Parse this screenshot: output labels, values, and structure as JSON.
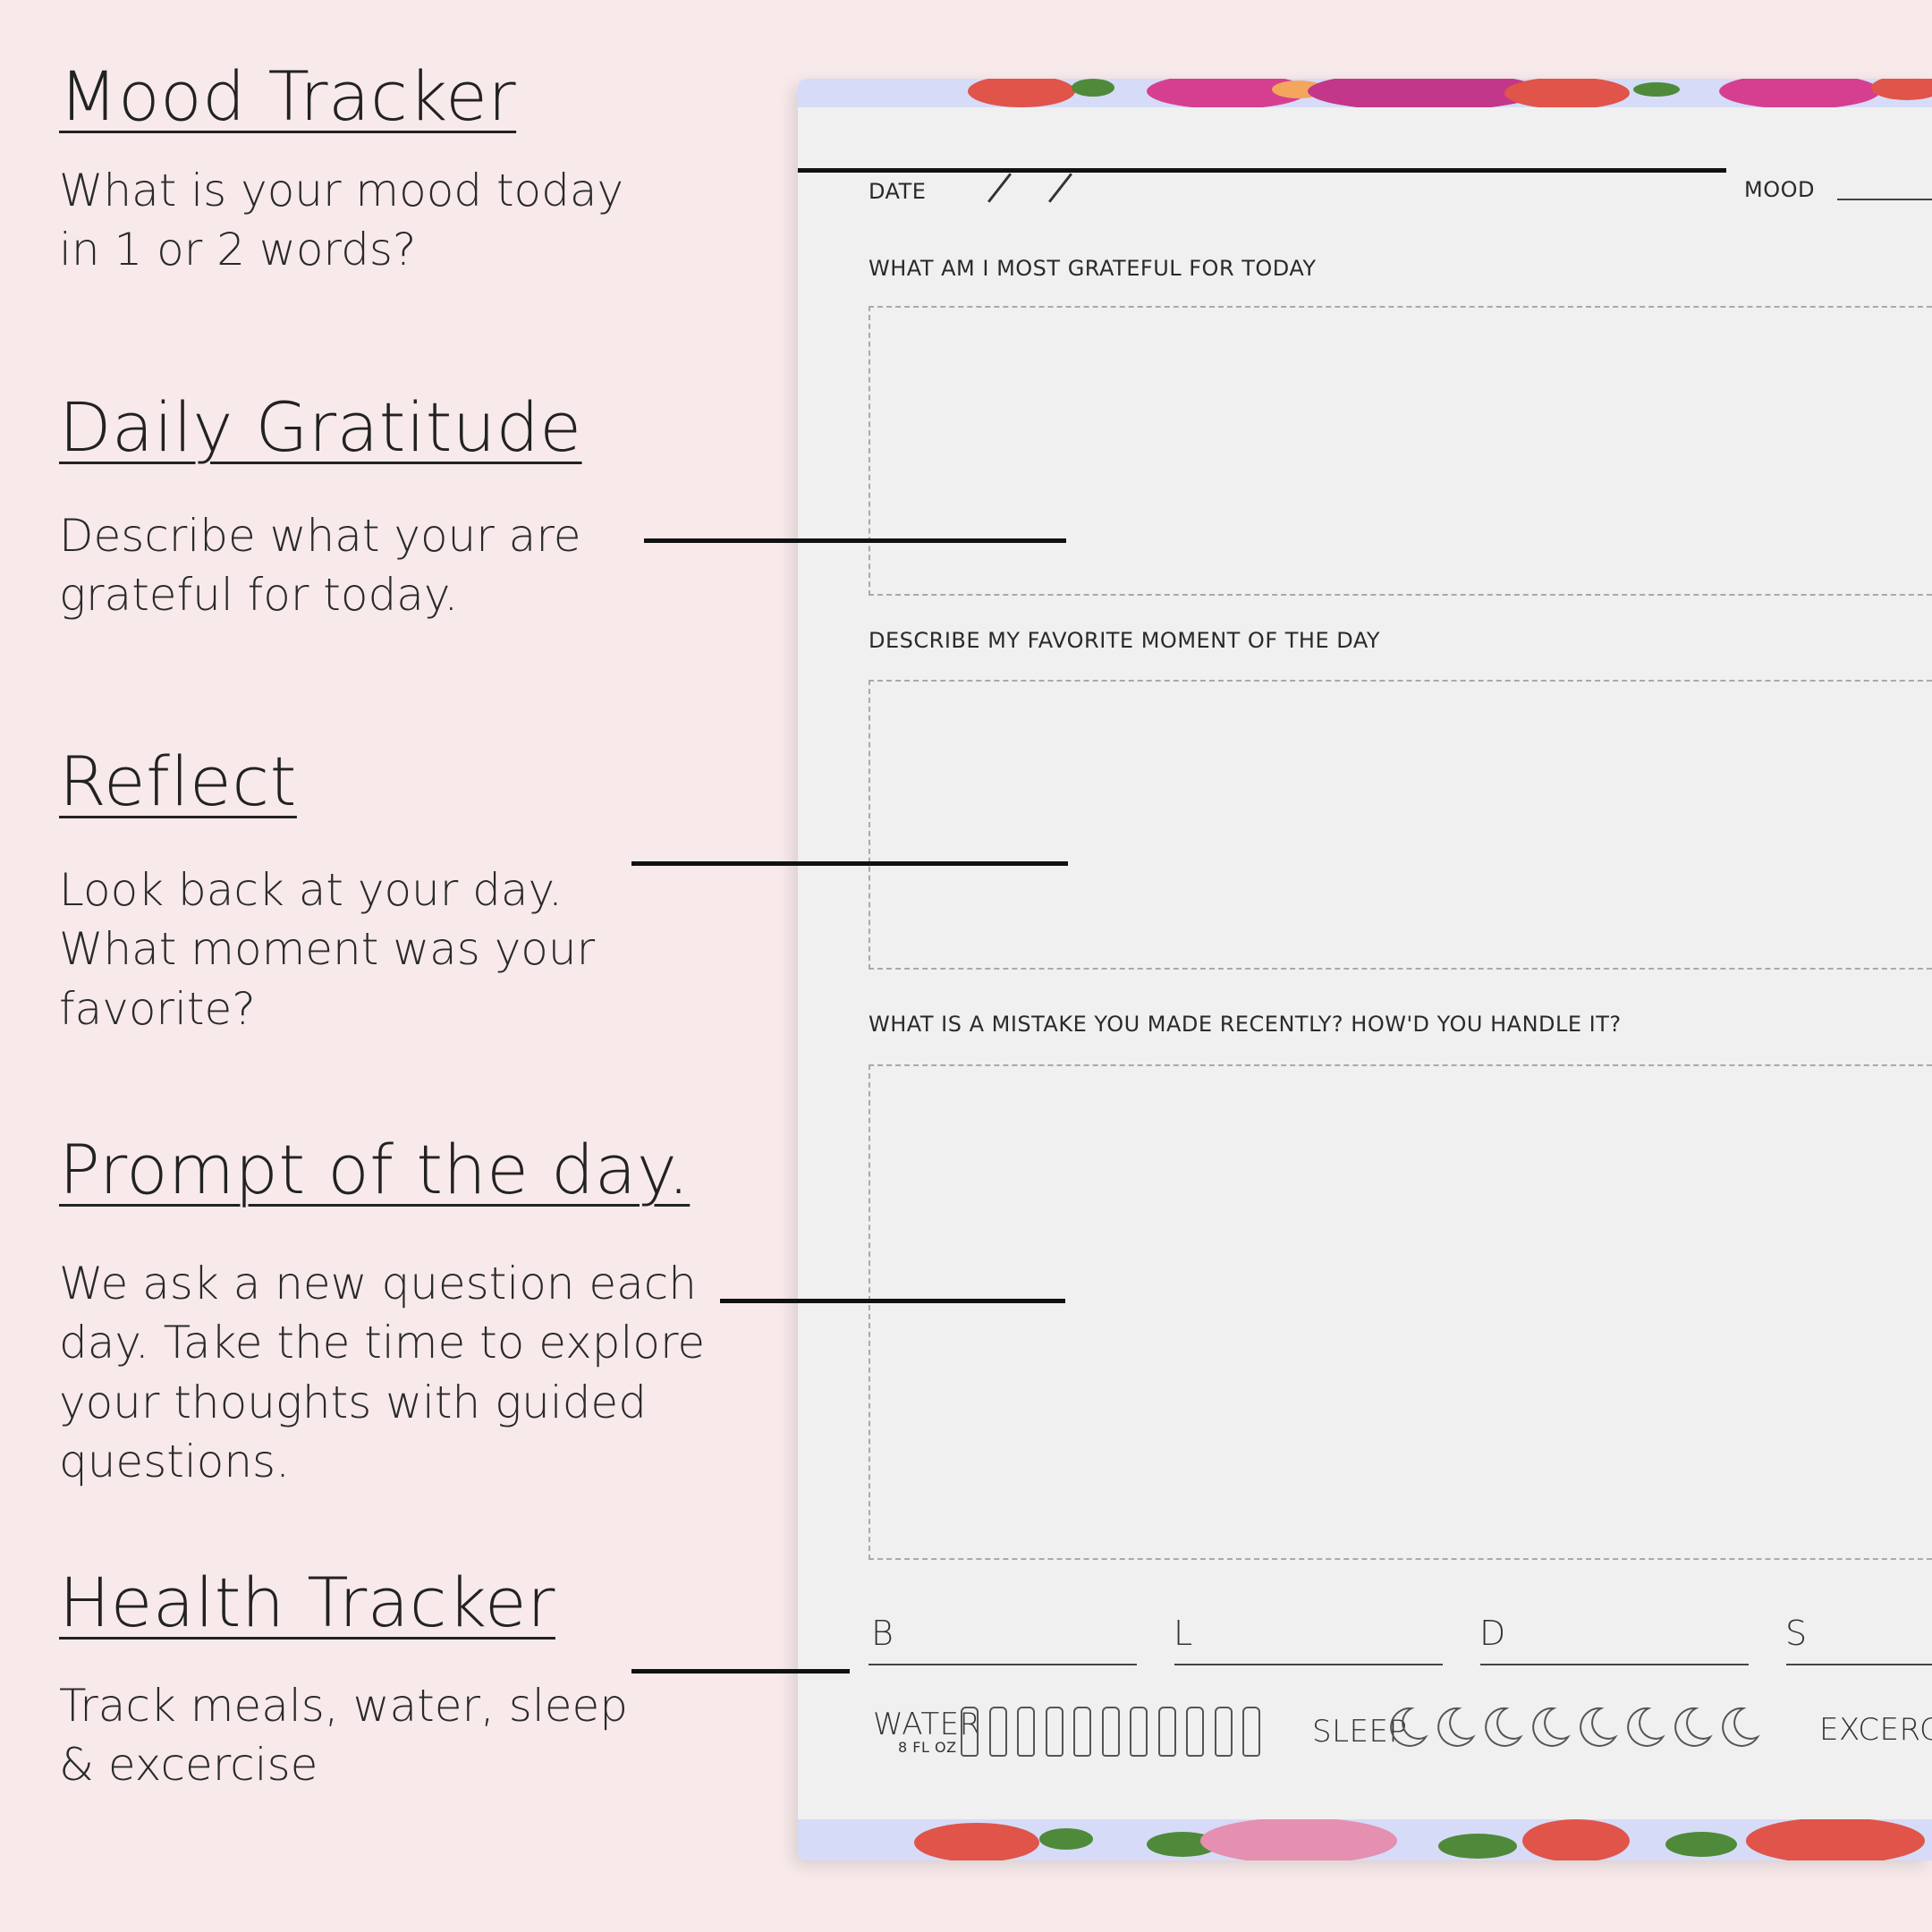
{
  "features": [
    {
      "title": "Mood Tracker",
      "description": "What is your mood today\nin 1 or 2 words?"
    },
    {
      "title": "Daily Gratitude",
      "description": "Describe what your are\ngrateful for today."
    },
    {
      "title": "Reflect",
      "description": "Look back at your day.\nWhat moment was your\nfavorite?"
    },
    {
      "title": "Prompt of the day.",
      "description": "We ask a new question each\nday. Take the time to explore\nyour thoughts with guided\nquestions."
    },
    {
      "title": "Health Tracker",
      "description": "Track meals, water, sleep\n& excercise"
    }
  ],
  "journal": {
    "date_label": "DATE",
    "mood_label": "MOOD",
    "gratitude_prompt": "WHAT AM I MOST GRATEFUL FOR TODAY",
    "moment_prompt": "DESCRIBE MY FAVORITE MOMENT OF THE DAY",
    "mistake_prompt": "WHAT IS A MISTAKE YOU MADE RECENTLY? HOW'D YOU HANDLE IT?",
    "meals": [
      "B",
      "L",
      "D",
      "S"
    ],
    "water_label": "WATER",
    "water_unit": "8 FL OZ",
    "water_glasses": 11,
    "sleep_label": "SLEEP",
    "sleep_hours": 8,
    "exercise_label": "EXCERCISE"
  },
  "colors": {
    "background": "#f8eaea",
    "page": "#f0f0f0",
    "floral_pink": "#d63f8f",
    "floral_red": "#e0544a",
    "floral_green": "#4f8a3a",
    "floral_sky": "#d6dcf7"
  }
}
